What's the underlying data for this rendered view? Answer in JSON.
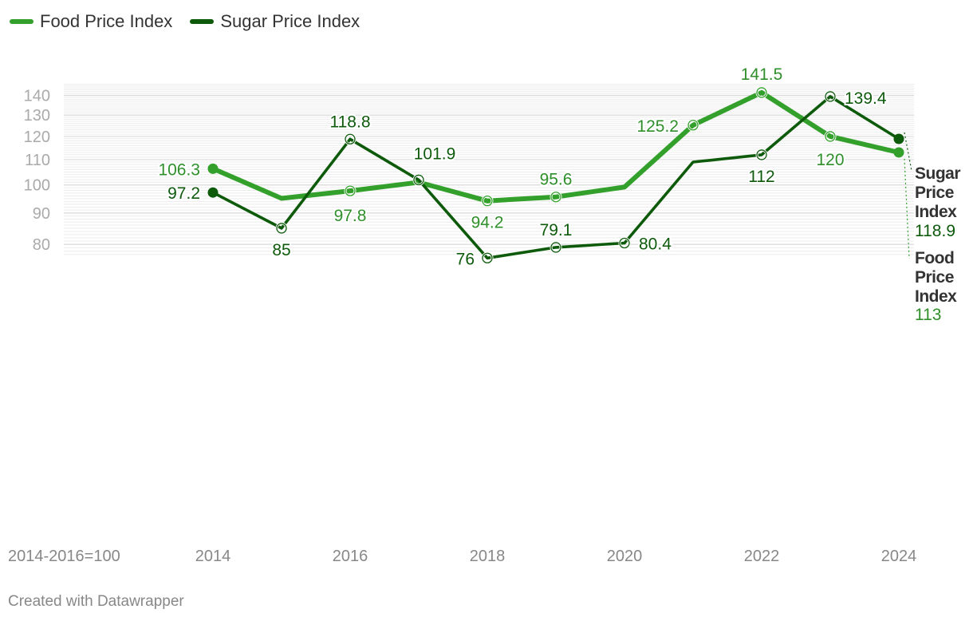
{
  "legend": [
    {
      "label": "Food Price Index",
      "color": "#33a02c"
    },
    {
      "label": "Sugar Price Index",
      "color": "#0d5a0b"
    }
  ],
  "footer": "Created with Datawrapper",
  "chart_data": {
    "type": "line",
    "title": "",
    "xlabel": "",
    "ylabel": "",
    "y_note": "2014-2016=100",
    "x": [
      2014,
      2015,
      2016,
      2017,
      2018,
      2019,
      2020,
      2021,
      2022,
      2023,
      2024
    ],
    "x_ticks": [
      2014,
      2016,
      2018,
      2020,
      2022,
      2024
    ],
    "y_ticks": [
      80,
      90,
      100,
      110,
      120,
      130,
      140
    ],
    "y_scale": "log",
    "ylim": [
      70,
      160
    ],
    "grid": true,
    "series": [
      {
        "name": "Food Price Index",
        "color": "#33a02c",
        "label_color": "#2f8f2a",
        "values": [
          106.3,
          95.1,
          97.8,
          101.0,
          94.2,
          95.6,
          99.2,
          125.2,
          141.5,
          120,
          113
        ],
        "data_labels": [
          {
            "i": 0,
            "text": "106.3"
          },
          {
            "i": 2,
            "text": "97.8"
          },
          {
            "i": 4,
            "text": "94.2"
          },
          {
            "i": 5,
            "text": "95.6"
          },
          {
            "i": 7,
            "text": "125.2"
          },
          {
            "i": 8,
            "text": "141.5"
          },
          {
            "i": 9,
            "text": "120"
          }
        ],
        "end_label": [
          "Food",
          "Price",
          "Index"
        ],
        "end_value": "113"
      },
      {
        "name": "Sugar Price Index",
        "color": "#0d5a0b",
        "label_color": "#0d5a0b",
        "values": [
          97.2,
          85,
          118.8,
          101.9,
          76,
          79.1,
          80.4,
          109,
          112,
          139.4,
          118.9
        ],
        "data_labels": [
          {
            "i": 0,
            "text": "97.2"
          },
          {
            "i": 1,
            "text": "85"
          },
          {
            "i": 2,
            "text": "118.8"
          },
          {
            "i": 3,
            "text": "101.9"
          },
          {
            "i": 4,
            "text": "76"
          },
          {
            "i": 5,
            "text": "79.1"
          },
          {
            "i": 6,
            "text": "80.4"
          },
          {
            "i": 8,
            "text": "112"
          },
          {
            "i": 9,
            "text": "139.4"
          }
        ],
        "end_label": [
          "Sugar",
          "Price",
          "Index"
        ],
        "end_value": "118.9"
      }
    ]
  }
}
